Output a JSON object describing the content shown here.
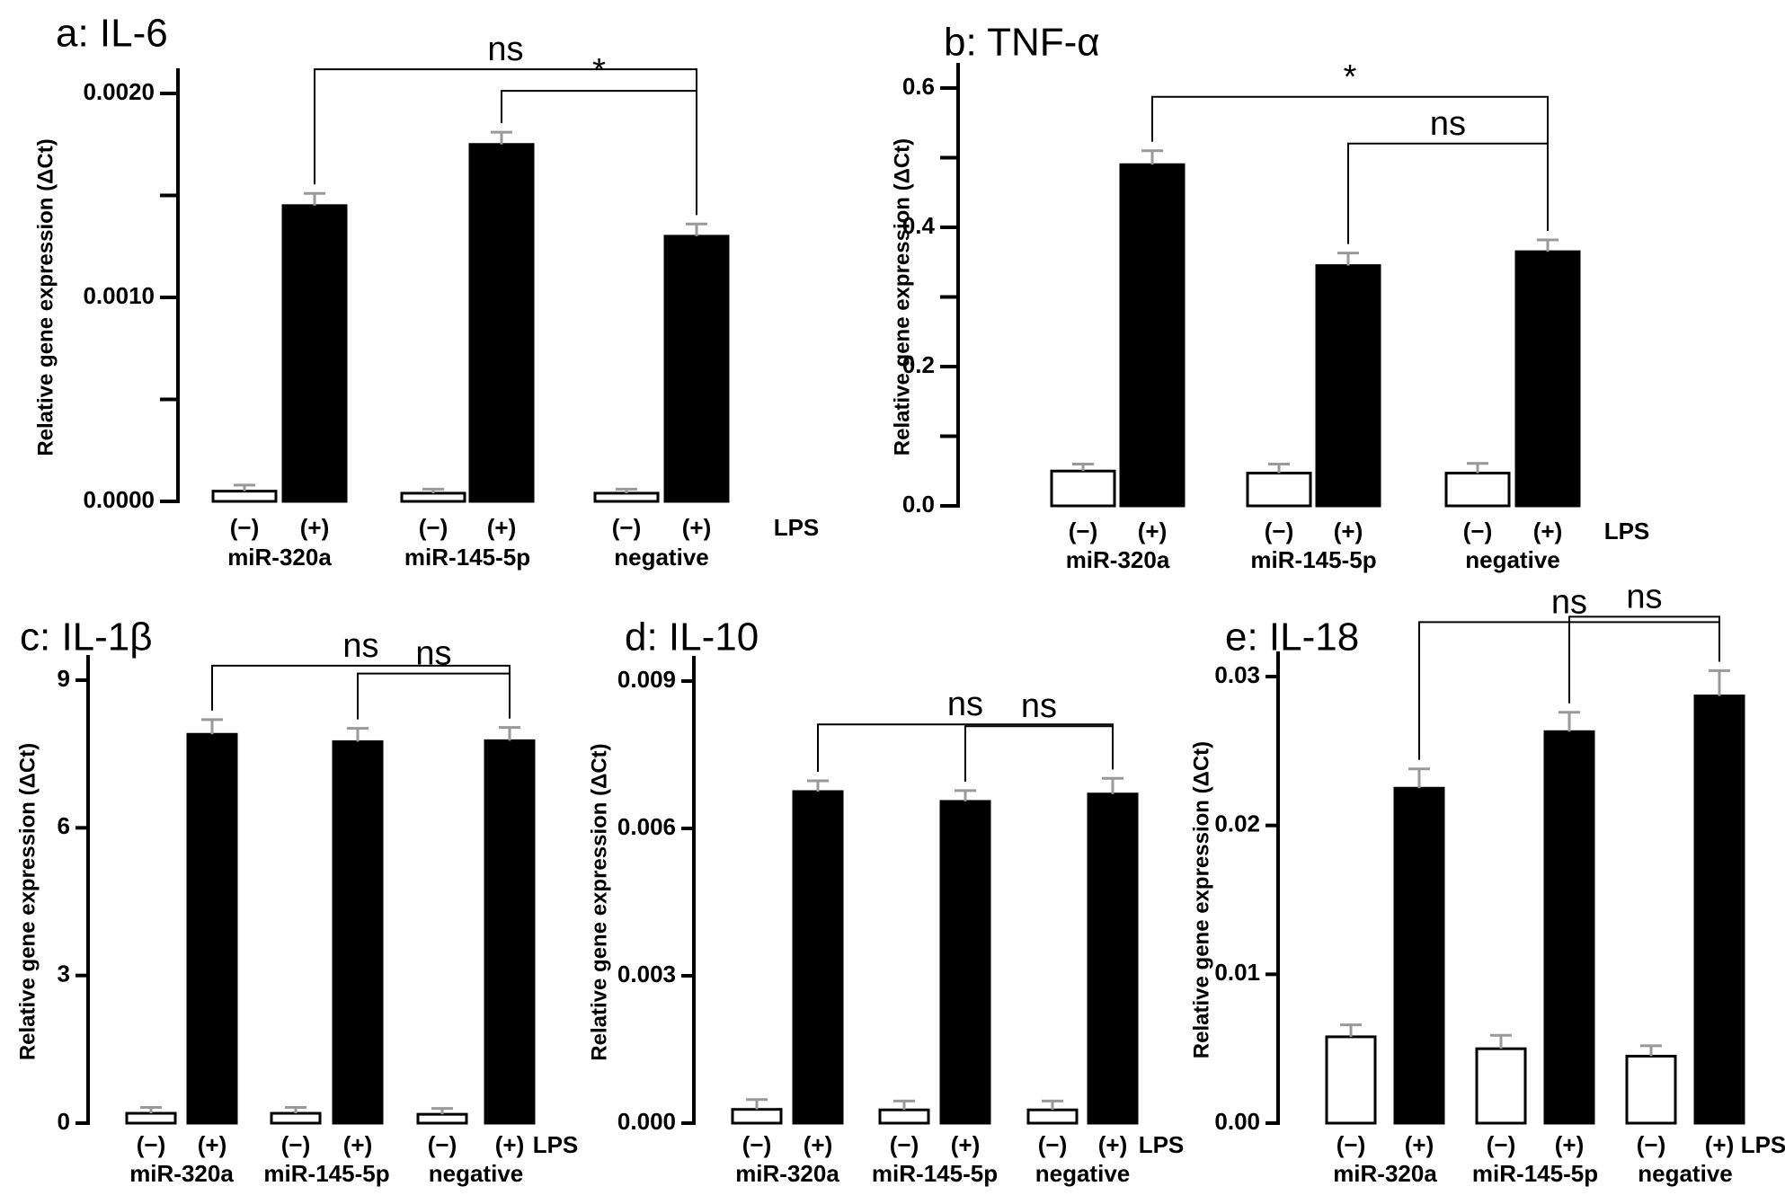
{
  "figure": {
    "group_labels": [
      "miR-320a",
      "miR-145-5p",
      "negative"
    ],
    "condition_labels": [
      "(−)",
      "(+)"
    ],
    "lps_label": "LPS",
    "colors": {
      "treated": "#000000",
      "untreated": "#ffffff",
      "error": "#999999",
      "axis": "#000000"
    }
  },
  "chart_data": [
    {
      "type": "bar",
      "panel": "a",
      "title": "a:  IL-6",
      "ylabel": "Relative gene expression (ΔCt)",
      "ylim": [
        0,
        0.0021
      ],
      "yticks": [
        0,
        0.0005,
        0.001,
        0.0015,
        0.002
      ],
      "ytick_labels": [
        "0.0000",
        "",
        "0.0010",
        "",
        "0.0020"
      ],
      "categories": [
        "miR-320a (−)",
        "miR-320a (+)",
        "miR-145-5p (−)",
        "miR-145-5p (+)",
        "negative (−)",
        "negative (+)"
      ],
      "values": [
        5e-05,
        0.00145,
        4e-05,
        0.00175,
        4e-05,
        0.0013
      ],
      "errors": [
        3e-05,
        6e-05,
        2e-05,
        6e-05,
        2e-05,
        6e-05
      ],
      "significance": [
        {
          "from": 1,
          "to": 5,
          "label": "ns"
        },
        {
          "from": 3,
          "to": 5,
          "label": "*"
        }
      ]
    },
    {
      "type": "bar",
      "panel": "b",
      "title": "b: TNF-α",
      "ylabel": "Relative gene expression (ΔCt)",
      "ylim": [
        0,
        0.6
      ],
      "yticks": [
        0,
        0.1,
        0.2,
        0.3,
        0.4,
        0.5,
        0.6
      ],
      "ytick_labels": [
        "0.0",
        "",
        "0.2",
        "",
        "0.4",
        "",
        "0.6"
      ],
      "categories": [
        "miR-320a (−)",
        "miR-320a (+)",
        "miR-145-5p (−)",
        "miR-145-5p (+)",
        "negative (−)",
        "negative (+)"
      ],
      "values": [
        0.05,
        0.49,
        0.047,
        0.345,
        0.047,
        0.365
      ],
      "errors": [
        0.01,
        0.02,
        0.013,
        0.018,
        0.014,
        0.017
      ],
      "significance": [
        {
          "from": 1,
          "to": 5,
          "label": "*"
        },
        {
          "from": 3,
          "to": 5,
          "label": "ns"
        }
      ]
    },
    {
      "type": "bar",
      "panel": "c",
      "title": "c: IL-1β",
      "ylabel": "Relative gene expression (ΔCt)",
      "ylim": [
        0,
        9
      ],
      "yticks": [
        0,
        3,
        6,
        9
      ],
      "ytick_labels": [
        "0",
        "3",
        "6",
        "9"
      ],
      "categories": [
        "miR-320a (−)",
        "miR-320a (+)",
        "miR-145-5p (−)",
        "miR-145-5p (+)",
        "negative (−)",
        "negative (+)"
      ],
      "values": [
        0.2,
        7.9,
        0.2,
        7.75,
        0.18,
        7.77
      ],
      "errors": [
        0.12,
        0.3,
        0.12,
        0.27,
        0.12,
        0.27
      ],
      "significance": [
        {
          "from": 1,
          "to": 5,
          "label": "ns"
        },
        {
          "from": 3,
          "to": 5,
          "label": "ns"
        }
      ]
    },
    {
      "type": "bar",
      "panel": "d",
      "title": "d: IL-10",
      "ylabel": "Relative gene expression (ΔCt)",
      "ylim": [
        0,
        0.009
      ],
      "yticks": [
        0,
        0.003,
        0.006,
        0.009
      ],
      "ytick_labels": [
        "0.000",
        "0.003",
        "0.006",
        "0.009"
      ],
      "categories": [
        "miR-320a (−)",
        "miR-320a (+)",
        "miR-145-5p (−)",
        "miR-145-5p (+)",
        "negative (−)",
        "negative (+)"
      ],
      "values": [
        0.00028,
        0.00675,
        0.00027,
        0.00655,
        0.00027,
        0.0067
      ],
      "errors": [
        0.0002,
        0.00022,
        0.00018,
        0.00022,
        0.00018,
        0.00032
      ],
      "significance": [
        {
          "from": 1,
          "to": 5,
          "label": "ns"
        },
        {
          "from": 3,
          "to": 5,
          "label": "ns"
        }
      ]
    },
    {
      "type": "bar",
      "panel": "e",
      "title": "e: IL-18",
      "ylabel": "Relative gene expression (ΔCt)",
      "ylim": [
        0,
        0.03
      ],
      "yticks": [
        0,
        0.01,
        0.02,
        0.03
      ],
      "ytick_labels": [
        "0.00",
        "0.01",
        "0.02",
        "0.03"
      ],
      "categories": [
        "miR-320a (−)",
        "miR-320a (+)",
        "miR-145-5p (−)",
        "miR-145-5p (+)",
        "negative (−)",
        "negative (+)"
      ],
      "values": [
        0.0058,
        0.0225,
        0.005,
        0.0263,
        0.0045,
        0.0287
      ],
      "errors": [
        0.0008,
        0.0013,
        0.0009,
        0.0013,
        0.0007,
        0.0017
      ],
      "significance": [
        {
          "from": 1,
          "to": 5,
          "label": "ns"
        },
        {
          "from": 3,
          "to": 5,
          "label": "ns"
        }
      ]
    }
  ]
}
